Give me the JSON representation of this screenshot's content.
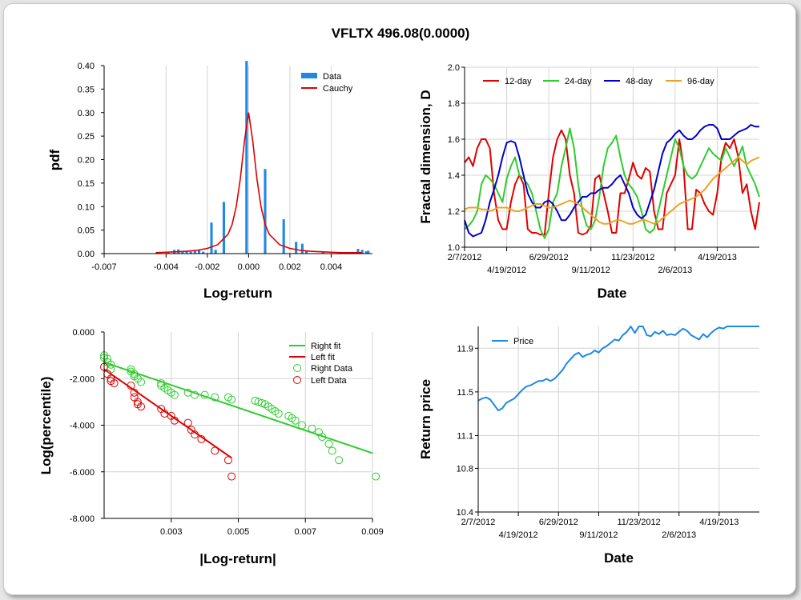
{
  "title": "VFLTX 496.08(0.0000)",
  "chart_data": [
    {
      "id": "pdf",
      "type": "bar",
      "xlabel": "Log-return",
      "ylabel": "pdf",
      "xlim": [
        -0.007,
        0.006
      ],
      "ylim": [
        0,
        0.4
      ],
      "x_ticks": [
        "-0.007",
        "-0.004",
        "-0.002",
        "0.000",
        "0.002",
        "0.004"
      ],
      "x_tick_values": [
        -0.007,
        -0.004,
        -0.002,
        0.0,
        0.002,
        0.004
      ],
      "y_ticks": [
        "0.00",
        "0.05",
        "0.10",
        "0.15",
        "0.20",
        "0.25",
        "0.30",
        "0.35",
        "0.40"
      ],
      "y_tick_values": [
        0,
        0.05,
        0.1,
        0.15,
        0.2,
        0.25,
        0.3,
        0.35,
        0.4
      ],
      "legend": [
        "Data",
        "Cauchy"
      ],
      "colors": {
        "Data": "#1e88e5",
        "Cauchy": "#e00000"
      },
      "bars": {
        "x": [
          -0.0039,
          -0.0036,
          -0.0034,
          -0.0032,
          -0.003,
          -0.0028,
          -0.0026,
          -0.0024,
          -0.0022,
          -0.0018,
          -0.0016,
          -0.0012,
          -0.0001,
          0.0008,
          0.0017,
          0.0023,
          0.0026,
          0.0028,
          0.0036,
          0.0053,
          0.0055,
          0.0057,
          0.0058
        ],
        "values": [
          0.003,
          0.008,
          0.009,
          0.004,
          0.006,
          0.004,
          0.006,
          0.008,
          0.004,
          0.066,
          0.008,
          0.11,
          0.41,
          0.18,
          0.073,
          0.025,
          0.021,
          0.006,
          0.004,
          0.01,
          0.008,
          0.005,
          0.006
        ]
      },
      "cauchy": {
        "x": [
          -0.0045,
          -0.004,
          -0.0035,
          -0.003,
          -0.0025,
          -0.002,
          -0.0015,
          -0.001,
          -0.0008,
          -0.0006,
          -0.0004,
          -0.0002,
          0.0,
          0.0002,
          0.0004,
          0.0006,
          0.0008,
          0.001,
          0.0015,
          0.002,
          0.0025,
          0.003,
          0.0035,
          0.004,
          0.0045,
          0.005,
          0.0055
        ],
        "y": [
          0.002,
          0.003,
          0.004,
          0.005,
          0.007,
          0.011,
          0.019,
          0.041,
          0.062,
          0.1,
          0.16,
          0.24,
          0.3,
          0.24,
          0.16,
          0.1,
          0.062,
          0.041,
          0.019,
          0.011,
          0.007,
          0.005,
          0.004,
          0.003,
          0.002,
          0.002,
          0.002
        ]
      }
    },
    {
      "id": "fractal",
      "type": "line",
      "xlabel": "Date",
      "ylabel": "Fractal dimension, D",
      "xlim": [
        0,
        70
      ],
      "ylim": [
        1.0,
        2.0
      ],
      "x_ticks_upper": [
        {
          "pos": 0,
          "label": "2/7/2012"
        },
        {
          "pos": 20,
          "label": "6/29/2012"
        },
        {
          "pos": 40,
          "label": "11/23/2012"
        },
        {
          "pos": 60,
          "label": "4/19/2013"
        }
      ],
      "x_ticks_lower": [
        {
          "pos": 10,
          "label": "4/19/2012"
        },
        {
          "pos": 30,
          "label": "9/11/2012"
        },
        {
          "pos": 50,
          "label": "2/6/2013"
        }
      ],
      "y_ticks": [
        "1.0",
        "1.2",
        "1.4",
        "1.6",
        "1.8",
        "2.0"
      ],
      "y_tick_values": [
        1.0,
        1.2,
        1.4,
        1.6,
        1.8,
        2.0
      ],
      "legend": [
        "12-day",
        "24-day",
        "48-day",
        "96-day"
      ],
      "series": [
        {
          "name": "12-day",
          "color": "#e00000",
          "values": [
            1.47,
            1.5,
            1.45,
            1.55,
            1.6,
            1.6,
            1.55,
            1.3,
            1.15,
            1.1,
            1.1,
            1.25,
            1.35,
            1.4,
            1.35,
            1.1,
            1.08,
            1.08,
            1.07,
            1.07,
            1.3,
            1.5,
            1.6,
            1.65,
            1.6,
            1.4,
            1.3,
            1.08,
            1.07,
            1.08,
            1.12,
            1.38,
            1.4,
            1.3,
            1.2,
            1.08,
            1.08,
            1.3,
            1.3,
            1.38,
            1.47,
            1.4,
            1.38,
            1.44,
            1.42,
            1.2,
            1.1,
            1.1,
            1.3,
            1.35,
            1.4,
            1.6,
            1.45,
            1.1,
            1.1,
            1.32,
            1.3,
            1.24,
            1.2,
            1.18,
            1.3,
            1.5,
            1.58,
            1.55,
            1.6,
            1.5,
            1.3,
            1.35,
            1.2,
            1.1,
            1.25
          ]
        },
        {
          "name": "24-day",
          "color": "#2ecc2e",
          "values": [
            1.1,
            1.12,
            1.15,
            1.2,
            1.35,
            1.4,
            1.38,
            1.35,
            1.3,
            1.25,
            1.38,
            1.45,
            1.5,
            1.4,
            1.38,
            1.35,
            1.3,
            1.2,
            1.1,
            1.05,
            1.1,
            1.25,
            1.3,
            1.45,
            1.55,
            1.66,
            1.55,
            1.35,
            1.2,
            1.12,
            1.1,
            1.15,
            1.28,
            1.45,
            1.55,
            1.58,
            1.62,
            1.5,
            1.4,
            1.35,
            1.32,
            1.28,
            1.2,
            1.1,
            1.08,
            1.1,
            1.2,
            1.3,
            1.4,
            1.5,
            1.6,
            1.55,
            1.45,
            1.4,
            1.38,
            1.4,
            1.45,
            1.5,
            1.55,
            1.52,
            1.5,
            1.48,
            1.55,
            1.5,
            1.45,
            1.5,
            1.56,
            1.45,
            1.4,
            1.35,
            1.28
          ]
        },
        {
          "name": "48-day",
          "color": "#0000cc",
          "values": [
            1.15,
            1.08,
            1.06,
            1.07,
            1.08,
            1.15,
            1.25,
            1.32,
            1.4,
            1.5,
            1.58,
            1.59,
            1.58,
            1.5,
            1.4,
            1.3,
            1.25,
            1.22,
            1.22,
            1.25,
            1.26,
            1.24,
            1.2,
            1.15,
            1.15,
            1.18,
            1.22,
            1.25,
            1.28,
            1.28,
            1.3,
            1.3,
            1.32,
            1.33,
            1.33,
            1.35,
            1.38,
            1.4,
            1.35,
            1.3,
            1.22,
            1.18,
            1.16,
            1.18,
            1.25,
            1.32,
            1.42,
            1.52,
            1.58,
            1.6,
            1.63,
            1.65,
            1.62,
            1.6,
            1.6,
            1.62,
            1.65,
            1.67,
            1.68,
            1.68,
            1.66,
            1.6,
            1.6,
            1.6,
            1.62,
            1.64,
            1.65,
            1.66,
            1.68,
            1.67,
            1.67
          ]
        },
        {
          "name": "96-day",
          "color": "#f0a020",
          "values": [
            1.21,
            1.22,
            1.22,
            1.22,
            1.21,
            1.21,
            1.2,
            1.21,
            1.22,
            1.22,
            1.22,
            1.21,
            1.2,
            1.2,
            1.21,
            1.22,
            1.23,
            1.24,
            1.24,
            1.23,
            1.22,
            1.22,
            1.23,
            1.24,
            1.25,
            1.26,
            1.25,
            1.24,
            1.22,
            1.2,
            1.18,
            1.16,
            1.14,
            1.13,
            1.13,
            1.14,
            1.15,
            1.15,
            1.14,
            1.13,
            1.13,
            1.14,
            1.15,
            1.15,
            1.14,
            1.13,
            1.14,
            1.16,
            1.18,
            1.2,
            1.22,
            1.24,
            1.25,
            1.26,
            1.27,
            1.28,
            1.3,
            1.32,
            1.35,
            1.38,
            1.4,
            1.42,
            1.44,
            1.46,
            1.48,
            1.5,
            1.48,
            1.46,
            1.48,
            1.49,
            1.5
          ]
        }
      ]
    },
    {
      "id": "tail",
      "type": "scatter",
      "xlabel": "|Log-return|",
      "ylabel": "Log(percentile)",
      "xlim": [
        0.001,
        0.009
      ],
      "ylim": [
        -8.0,
        0.0
      ],
      "x_ticks": [
        "0.003",
        "0.005",
        "0.007",
        "0.009"
      ],
      "x_tick_values": [
        0.003,
        0.005,
        0.007,
        0.009
      ],
      "y_ticks": [
        "0.000",
        "-2.000",
        "-4.000",
        "-6.000",
        "-8.000"
      ],
      "y_tick_values": [
        0,
        -2,
        -4,
        -6,
        -8
      ],
      "legend": [
        "Right fit",
        "Left fit",
        "Right Data",
        "Left Data"
      ],
      "colors": {
        "right": "#2ecc2e",
        "left": "#e00000"
      },
      "right_fit": {
        "x": [
          0.001,
          0.009
        ],
        "y": [
          -1.3,
          -5.2
        ]
      },
      "left_fit": {
        "x": [
          0.001,
          0.0048
        ],
        "y": [
          -1.6,
          -5.4
        ]
      },
      "right_data": {
        "x": [
          0.001,
          0.001,
          0.0011,
          0.0011,
          0.0012,
          0.0012,
          0.0018,
          0.0018,
          0.0019,
          0.0019,
          0.002,
          0.0021,
          0.0027,
          0.0027,
          0.0028,
          0.0029,
          0.003,
          0.0031,
          0.0035,
          0.0037,
          0.004,
          0.0043,
          0.0047,
          0.0048,
          0.0055,
          0.0056,
          0.0057,
          0.0058,
          0.0059,
          0.006,
          0.0061,
          0.0062,
          0.0065,
          0.0066,
          0.0067,
          0.0069,
          0.0072,
          0.0074,
          0.0075,
          0.0077,
          0.0078,
          0.008,
          0.0091
        ],
        "y": [
          -1.0,
          -1.1,
          -1.15,
          -1.3,
          -1.4,
          -1.6,
          -1.6,
          -1.7,
          -1.8,
          -1.9,
          -2.0,
          -2.15,
          -2.2,
          -2.3,
          -2.4,
          -2.5,
          -2.6,
          -2.7,
          -2.6,
          -2.7,
          -2.7,
          -2.8,
          -2.8,
          -2.9,
          -2.95,
          -3.0,
          -3.05,
          -3.1,
          -3.2,
          -3.3,
          -3.4,
          -3.5,
          -3.6,
          -3.7,
          -3.8,
          -4.0,
          -4.15,
          -4.3,
          -4.5,
          -4.8,
          -5.1,
          -5.5,
          -6.2
        ]
      },
      "left_data": {
        "x": [
          0.001,
          0.0011,
          0.0012,
          0.0012,
          0.0013,
          0.0018,
          0.0019,
          0.0019,
          0.002,
          0.002,
          0.0021,
          0.0027,
          0.0028,
          0.003,
          0.0031,
          0.0035,
          0.0036,
          0.0037,
          0.0039,
          0.0043,
          0.0047,
          0.0048
        ],
        "y": [
          -1.5,
          -1.8,
          -2.0,
          -2.1,
          -2.2,
          -2.3,
          -2.6,
          -2.8,
          -3.0,
          -3.1,
          -3.2,
          -3.3,
          -3.5,
          -3.6,
          -3.8,
          -3.9,
          -4.2,
          -4.4,
          -4.6,
          -5.1,
          -5.5,
          -6.2
        ]
      }
    },
    {
      "id": "price",
      "type": "line",
      "xlabel": "Date",
      "ylabel": "Return price",
      "xlim": [
        0,
        70
      ],
      "ylim": [
        10.4,
        12.1
      ],
      "x_ticks_upper": [
        {
          "pos": 0,
          "label": "2/7/2012"
        },
        {
          "pos": 20,
          "label": "6/29/2012"
        },
        {
          "pos": 40,
          "label": "11/23/2012"
        },
        {
          "pos": 60,
          "label": "4/19/2013"
        }
      ],
      "x_ticks_lower": [
        {
          "pos": 10,
          "label": "4/19/2012"
        },
        {
          "pos": 30,
          "label": "9/11/2012"
        },
        {
          "pos": 50,
          "label": "2/6/2013"
        }
      ],
      "y_ticks": [
        "10.4",
        "10.8",
        "11.1",
        "11.5",
        "11.9"
      ],
      "y_tick_values": [
        10.4,
        10.8,
        11.1,
        11.5,
        11.9
      ],
      "legend": [
        "Price"
      ],
      "series": [
        {
          "name": "Price",
          "color": "#1e88e5",
          "values": [
            11.42,
            11.44,
            11.45,
            11.43,
            11.38,
            11.33,
            11.35,
            11.4,
            11.42,
            11.44,
            11.48,
            11.52,
            11.55,
            11.56,
            11.58,
            11.6,
            11.6,
            11.62,
            11.6,
            11.62,
            11.66,
            11.7,
            11.76,
            11.8,
            11.84,
            11.86,
            11.82,
            11.84,
            11.85,
            11.88,
            11.86,
            11.9,
            11.92,
            11.95,
            11.98,
            11.97,
            12.02,
            12.05,
            12.1,
            12.04,
            12.1,
            12.12,
            12.02,
            12.01,
            12.05,
            12.03,
            12.06,
            12.02,
            12.03,
            12.02,
            12.05,
            12.08,
            12.06,
            12.02,
            12.0,
            11.98,
            12.03,
            12.0,
            12.04,
            12.07,
            12.09,
            12.08,
            12.1,
            12.12,
            12.1,
            12.12,
            12.14,
            12.12,
            12.13,
            12.12,
            12.1
          ]
        }
      ]
    }
  ]
}
